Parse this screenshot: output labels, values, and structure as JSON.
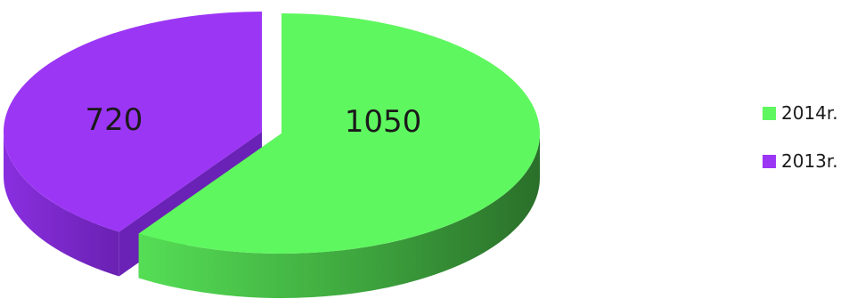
{
  "chart_data": {
    "type": "pie",
    "style": "3d-exploded",
    "categories": [
      "2014r.",
      "2013r."
    ],
    "values": [
      1050,
      720
    ],
    "colors": [
      "#5ff75f",
      "#9c36f5"
    ],
    "data_labels": [
      "1050",
      "720"
    ],
    "legend_position": "right",
    "title": ""
  }
}
